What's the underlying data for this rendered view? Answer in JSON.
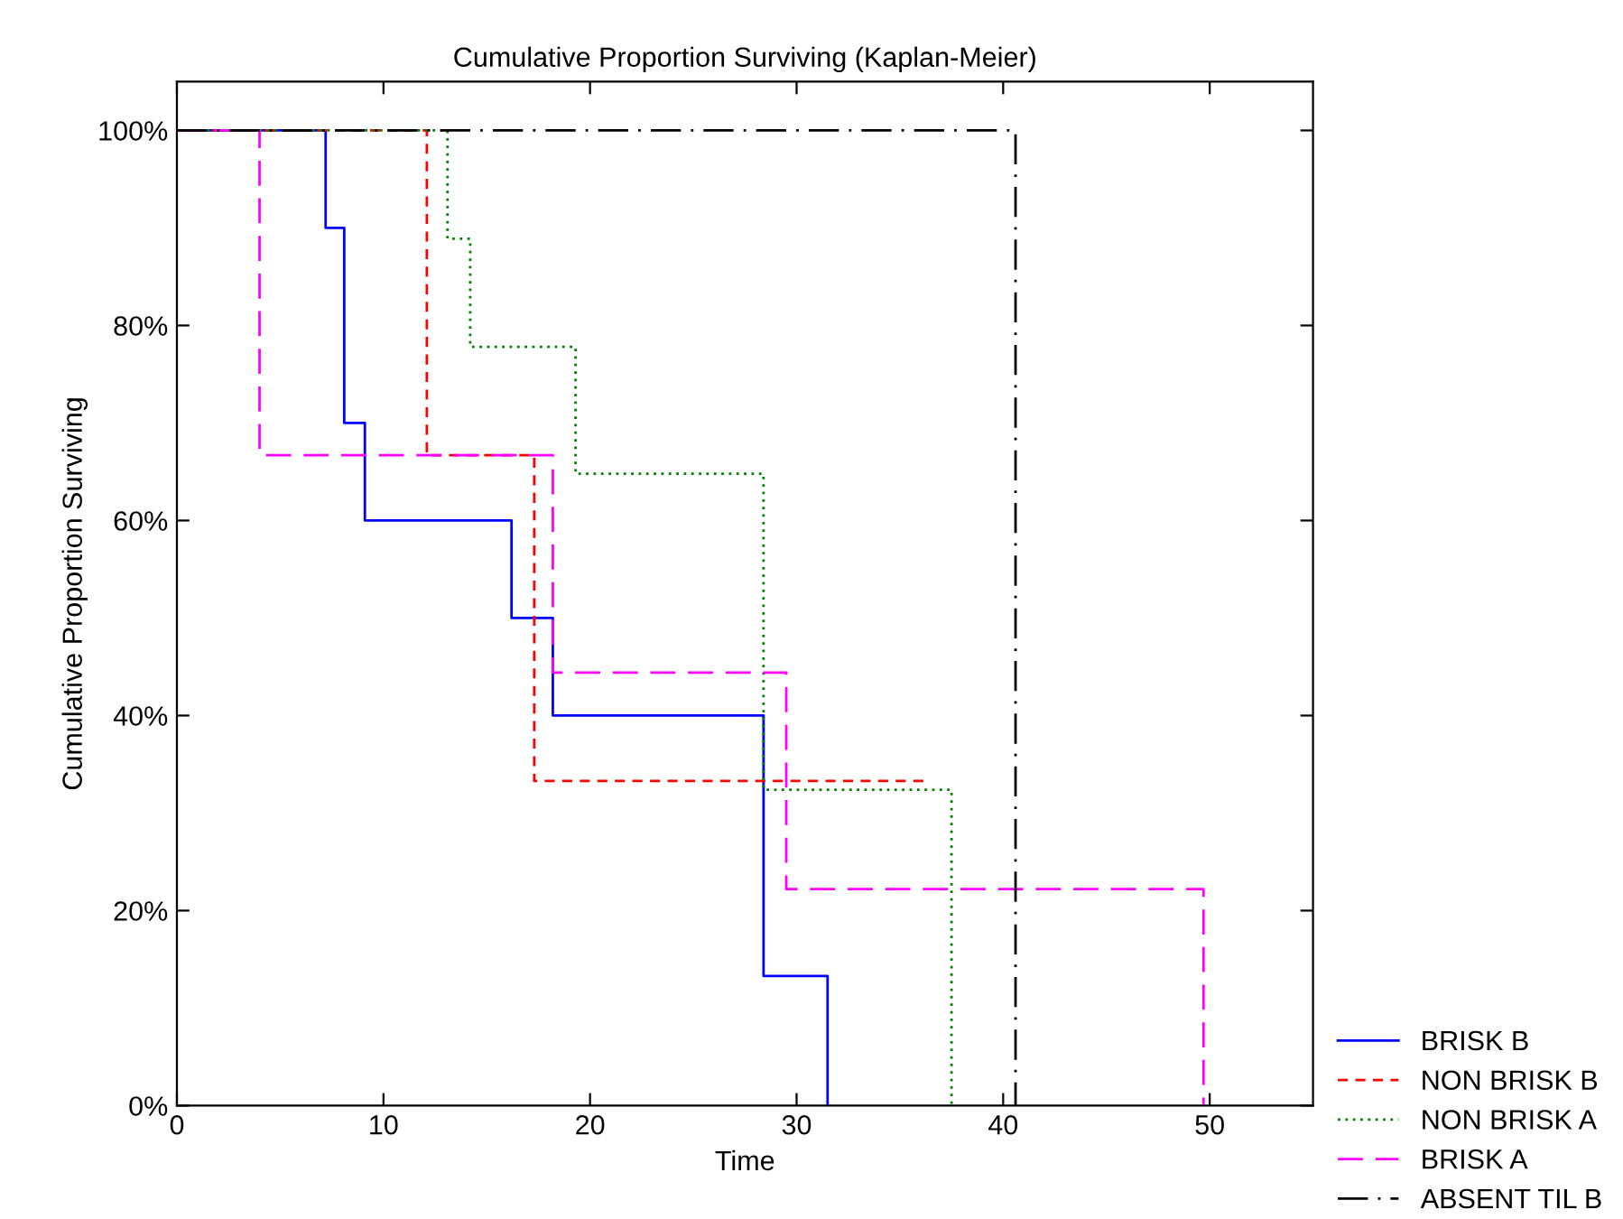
{
  "chart_data": {
    "type": "step",
    "title": "Cumulative Proportion Surviving (Kaplan-Meier)",
    "xlabel": "Time",
    "ylabel": "Cumulative Proportion Surviving",
    "xlim": [
      0,
      55
    ],
    "xticks": [
      0,
      10,
      20,
      30,
      40,
      50
    ],
    "ylim": [
      0,
      105
    ],
    "yticks": [
      {
        "value": 0,
        "label": "0%"
      },
      {
        "value": 20,
        "label": "20%"
      },
      {
        "value": 40,
        "label": "40%"
      },
      {
        "value": 60,
        "label": "60%"
      },
      {
        "value": 80,
        "label": "80%"
      },
      {
        "value": 100,
        "label": "100%"
      }
    ],
    "grid": false,
    "legend": "bottom right",
    "series": [
      {
        "name": "BRISK B",
        "color": "#0000ff",
        "line_style": "solid",
        "x": [
          0,
          7.2,
          8.1,
          9.1,
          16.2,
          18.2,
          28.4,
          31.5
        ],
        "values": [
          100,
          90,
          70,
          60,
          50,
          40,
          13.3,
          0
        ]
      },
      {
        "name": "NON BRISK B",
        "color": "#ff0000",
        "line_style": "dashed",
        "x": [
          0,
          12.1,
          17.3,
          36.3
        ],
        "values": [
          100,
          66.7,
          33.3,
          33.3
        ]
      },
      {
        "name": "NON BRISK A",
        "color": "#008000",
        "line_style": "dotted",
        "x": [
          0,
          13.1,
          14.2,
          19.3,
          28.4,
          37.5
        ],
        "values": [
          100,
          88.9,
          77.8,
          64.8,
          32.4,
          0
        ]
      },
      {
        "name": "BRISK A",
        "color": "#ff00ff",
        "line_style": "longdash",
        "x": [
          0,
          4.0,
          18.2,
          29.5,
          49.7
        ],
        "values": [
          100,
          66.7,
          44.4,
          22.2,
          0
        ]
      },
      {
        "name": "ABSENT TIL B",
        "color": "#000000",
        "line_style": "dashdot",
        "x": [
          0,
          40.6
        ],
        "values": [
          100,
          0
        ]
      }
    ]
  }
}
